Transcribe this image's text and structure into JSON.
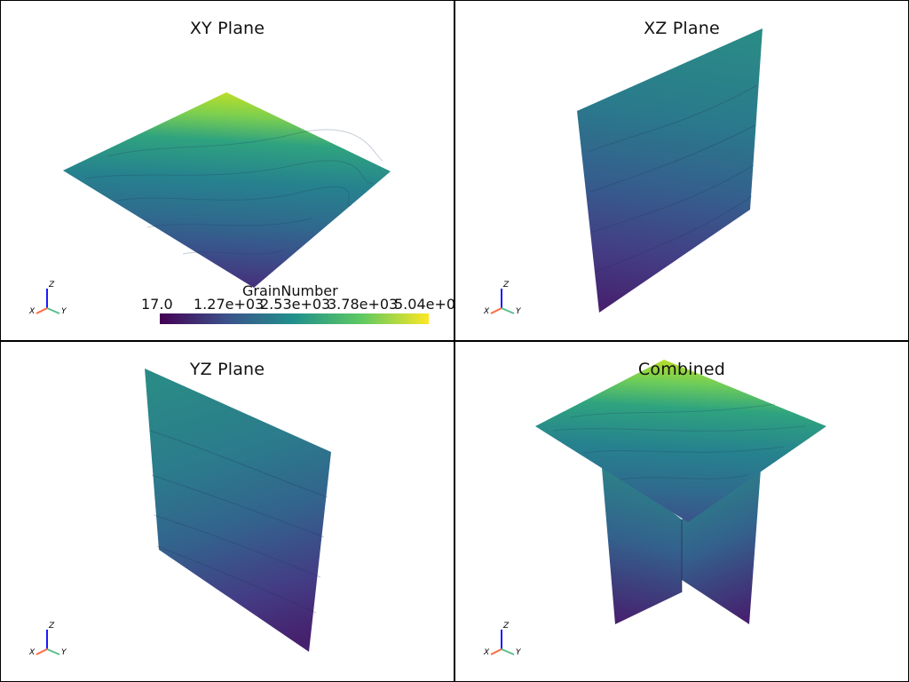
{
  "viewports": {
    "xy": {
      "title": "XY Plane"
    },
    "xz": {
      "title": "XZ Plane"
    },
    "yz": {
      "title": "YZ Plane"
    },
    "combined": {
      "title": "Combined"
    }
  },
  "axes_labels": {
    "x": "X",
    "y": "Y",
    "z": "Z"
  },
  "colorbar": {
    "title": "GrainNumber",
    "ticks": [
      "17.0",
      "1.27e+03",
      "2.53e+03",
      "3.78e+03",
      "5.04e+0"
    ],
    "colormap": [
      "#440154",
      "#3b528b",
      "#21918c",
      "#5ec962",
      "#fde725"
    ]
  },
  "colors": {
    "low": "#440154",
    "mid_low": "#31688e",
    "mid": "#26828e",
    "mid_high": "#35b779",
    "high": "#bddf26"
  }
}
